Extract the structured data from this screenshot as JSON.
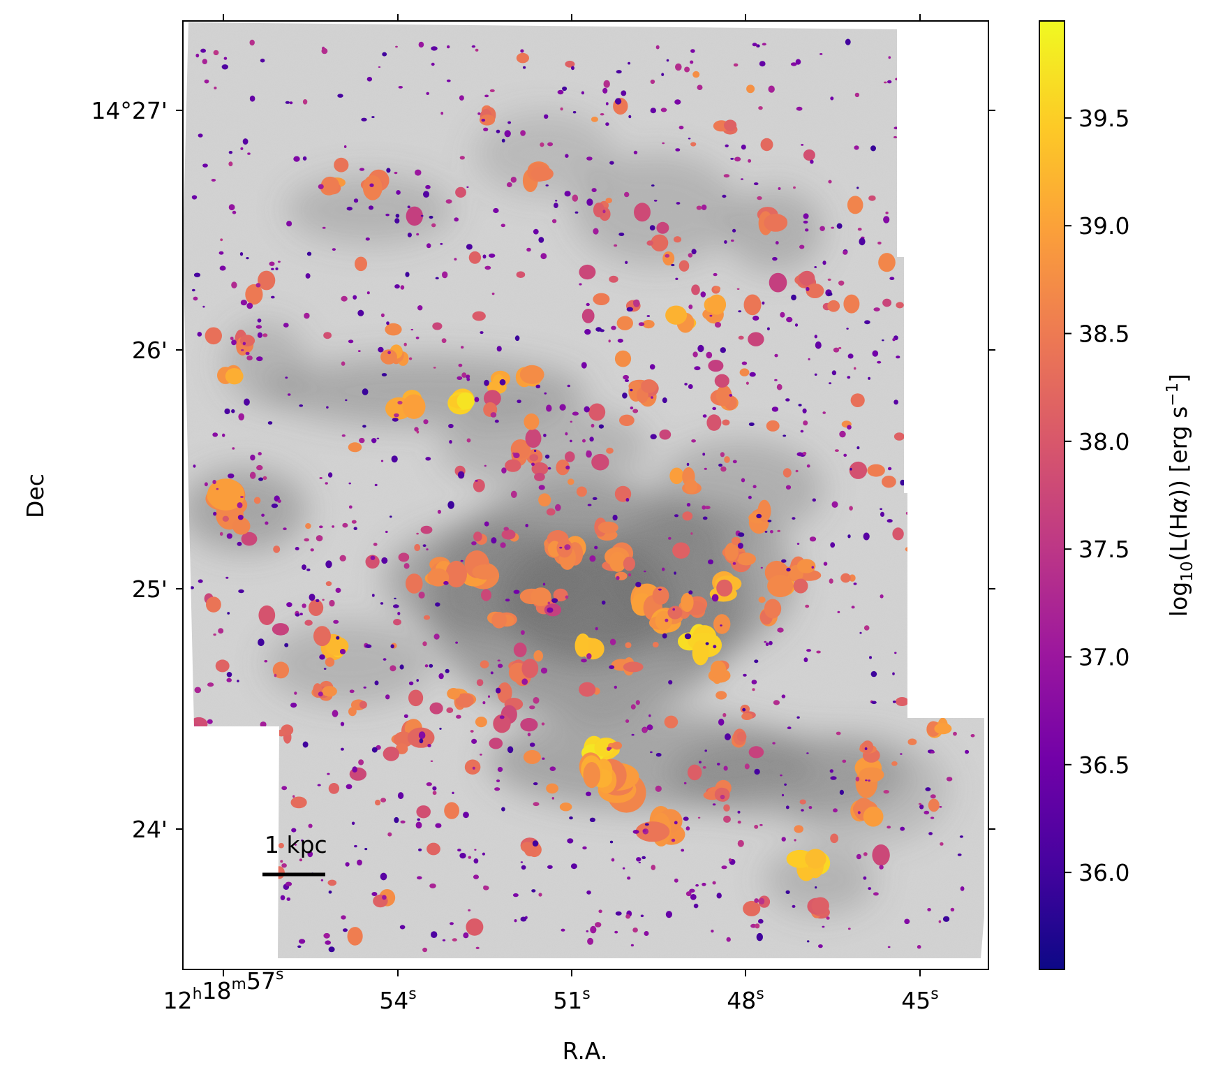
{
  "chart_data": {
    "type": "heatmap",
    "title": "",
    "xlabel": "R.A.",
    "ylabel": "Dec",
    "x_ticks": [
      {
        "value": 57,
        "label_parts": [
          "12",
          "h",
          "18",
          "m",
          "57",
          "s"
        ]
      },
      {
        "value": 54,
        "label_parts": [
          "54",
          "s"
        ]
      },
      {
        "value": 51,
        "label_parts": [
          "51",
          "s"
        ]
      },
      {
        "value": 48,
        "label_parts": [
          "48",
          "s"
        ]
      },
      {
        "value": 45,
        "label_parts": [
          "45",
          "s"
        ]
      }
    ],
    "y_ticks": [
      {
        "value": 27,
        "label": "14°27'"
      },
      {
        "value": 26,
        "label": "26'"
      },
      {
        "value": 25,
        "label": "25'"
      },
      {
        "value": 24,
        "label": "24'"
      }
    ],
    "colorbar": {
      "label_parts": [
        "log",
        "10",
        "(L(H",
        "α",
        ")) [erg s",
        "−1",
        "]"
      ],
      "range": [
        35.55,
        39.95
      ],
      "ticks": [
        {
          "value": 36.0,
          "label": "36.0"
        },
        {
          "value": 36.5,
          "label": "36.5"
        },
        {
          "value": 37.0,
          "label": "37.0"
        },
        {
          "value": 37.5,
          "label": "37.5"
        },
        {
          "value": 38.0,
          "label": "38.0"
        },
        {
          "value": 38.5,
          "label": "38.5"
        },
        {
          "value": 39.0,
          "label": "39.0"
        },
        {
          "value": 39.5,
          "label": "39.5"
        }
      ],
      "colormap": "plasma"
    },
    "scale_bar": {
      "label": "1 kpc"
    },
    "background": "grayscale galaxy image",
    "colors": {
      "plasma": [
        "#0d0887",
        "#46039f",
        "#7201a8",
        "#9c179e",
        "#bd3786",
        "#d8576b",
        "#ed7953",
        "#fb9f3a",
        "#fdca26",
        "#f0f921"
      ],
      "background_light": "#d4d4d4",
      "background_dark": "#6a6a6a"
    }
  }
}
